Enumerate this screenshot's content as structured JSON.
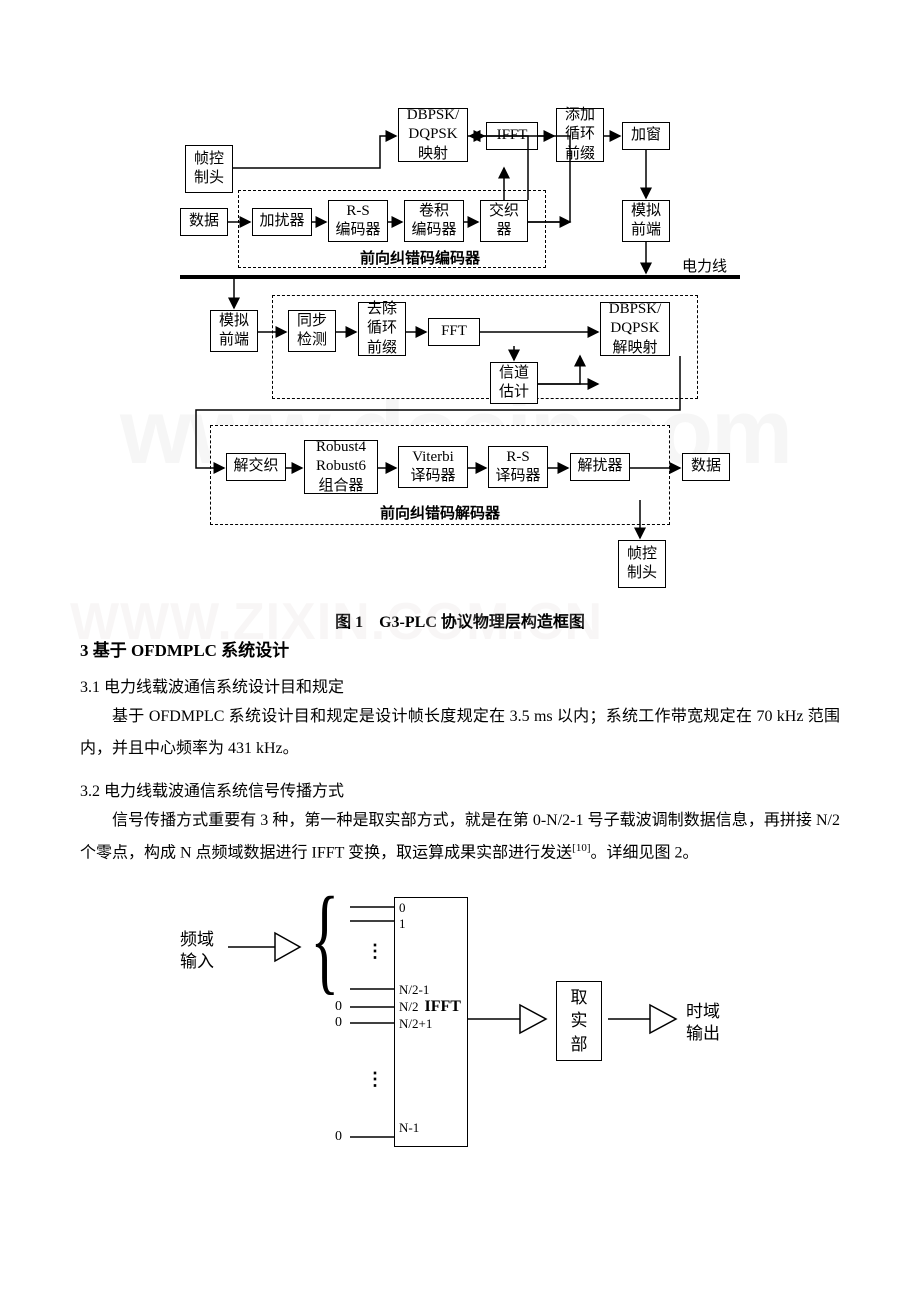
{
  "fig1": {
    "row1": {
      "b1": "帧控\n制头",
      "b2": "DBPSK/\nDQPSK\n映射",
      "b3": "IFFT",
      "b4": "添加\n循环\n前缀",
      "b5": "加窗"
    },
    "row2": {
      "b1": "数据",
      "b2": "加扰器",
      "b3": "R-S\n编码器",
      "b4": "卷积\n编码器",
      "b5": "交织\n器",
      "b6": "模拟\n前端",
      "group": "前向纠错码编码器",
      "line": "电力线"
    },
    "row3": {
      "b1": "模拟\n前端",
      "b2": "同步\n检测",
      "b3": "去除\n循环\n前缀",
      "b4": "FFT",
      "b5": "DBPSK/\nDQPSK\n解映射",
      "b6": "信道\n估计"
    },
    "row4": {
      "b1": "解交织",
      "b2": "Robust4\nRobust6\n组合器",
      "b3": "Viterbi\n译码器",
      "b4": "R-S\n译码器",
      "b5": "解扰器",
      "b6": "数据",
      "group": "前向纠错码解码器",
      "sidebox": "帧控\n制头"
    },
    "caption": "图 1　G3-PLC 协议物理层构造框图"
  },
  "watermark1": "www.docin.com",
  "watermark2": "WWW.ZIXIN.COM.CN",
  "heading3": "3 基于 OFDMPLC 系统设计",
  "s31": "3.1 电力线载波通信系统设计目和规定",
  "p31": "基于 OFDMPLC 系统设计目和规定是设计帧长度规定在 3.5 ms 以内；系统工作带宽规定在 70 kHz 范围内，并且中心频率为 431 kHz。",
  "s32": "3.2 电力线载波通信系统信号传播方式",
  "p32a": "信号传播方式重要有 3 种，第一种是取实部方式，就是在第 0-N/2-1 号子载波调制数据信息，再拼接 N/2 个零点，构成 N 点频域数据进行 IFFT 变换，取运算成果实部进行发送",
  "p32ref": "[10]",
  "p32b": "。详细见图 2。",
  "fig2": {
    "left1": "频域",
    "left2": "输入",
    "ifft": "IFFT",
    "idx0": "0",
    "idx1": "1",
    "idxNm2": "N/2-1",
    "idxN2": "N/2",
    "idxN2p1": "N/2+1",
    "idxN1": "N-1",
    "zero": "0",
    "mid1": "取",
    "mid2": "实",
    "mid3": "部",
    "right1": "时域",
    "right2": "输出"
  }
}
